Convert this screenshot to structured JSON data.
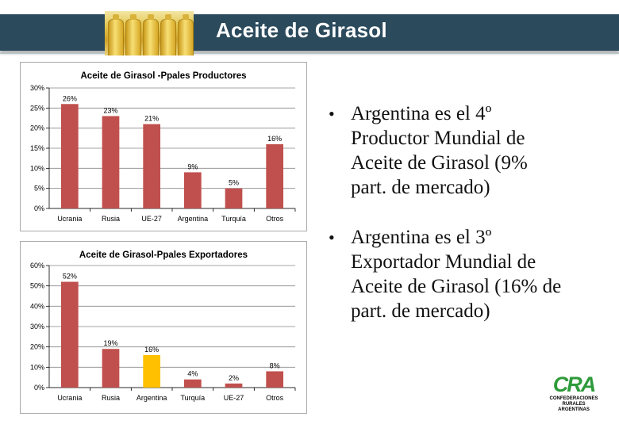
{
  "slide": {
    "title": "Aceite de Girasol"
  },
  "bullets": [
    {
      "line1": "Argentina es el 4º",
      "line2": "Productor Mundial de",
      "line3": "Aceite de Girasol  (9%",
      "line4": "part. de mercado)"
    },
    {
      "line1": "Argentina es el 3º",
      "line2": "Exportador  Mundial de",
      "line3": "Aceite de Girasol  (16% de",
      "line4": "part. de mercado)"
    }
  ],
  "logo": {
    "mark": "CRA",
    "line1": "CONFEDERACIONES",
    "line2": "RURALES",
    "line3": "ARGENTINAS"
  },
  "colors": {
    "header": "#2b4a5c",
    "bar": "#c0504d",
    "highlight": "#ffc000",
    "grid": "#888888"
  },
  "chart_data": [
    {
      "type": "bar",
      "title": "Aceite de Girasol -Ppales Productores",
      "categories": [
        "Ucrania",
        "Rusia",
        "UE-27",
        "Argentina",
        "Turquía",
        "Otros"
      ],
      "values": [
        26,
        23,
        21,
        9,
        5,
        16
      ],
      "data_labels": [
        "26%",
        "23%",
        "21%",
        "9%",
        "5%",
        "16%"
      ],
      "yticks": [
        "0%",
        "5%",
        "10%",
        "15%",
        "20%",
        "25%",
        "30%"
      ],
      "ylim": [
        0,
        30
      ],
      "highlight_index": -1,
      "grid": true
    },
    {
      "type": "bar",
      "title": "Aceite de Girasol-Ppales Exportadores",
      "categories": [
        "Ucrania",
        "Rusia",
        "Argentina",
        "Turquía",
        "UE-27",
        "Otros"
      ],
      "values": [
        52,
        19,
        16,
        4,
        2,
        8
      ],
      "data_labels": [
        "52%",
        "19%",
        "16%",
        "4%",
        "2%",
        "8%"
      ],
      "yticks": [
        "0%",
        "10%",
        "20%",
        "30%",
        "40%",
        "50%",
        "60%"
      ],
      "ylim": [
        0,
        60
      ],
      "highlight_index": 2,
      "grid": true
    }
  ]
}
